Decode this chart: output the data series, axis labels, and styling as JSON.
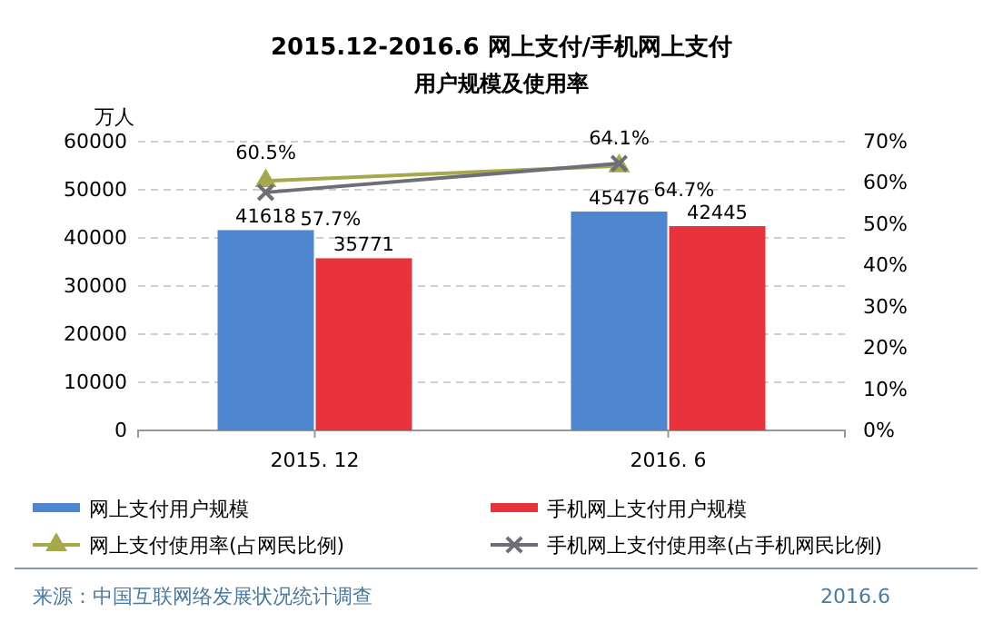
{
  "chart_data": {
    "type": "bar",
    "title": "2015.12-2016.6 网上支付/手机网上支付",
    "subtitle": "用户规模及使用率",
    "ylabel": "万人",
    "categories": [
      "2015. 12",
      "2016. 6"
    ],
    "series": [
      {
        "name": "网上支付用户规模",
        "color": "#4f86d0",
        "values": [
          41618,
          45476
        ],
        "value_labels": [
          "41618",
          "45476"
        ]
      },
      {
        "name": "手机网上支付用户规模",
        "color": "#e8323c",
        "values": [
          35771,
          42445
        ],
        "value_labels": [
          "35771",
          "42445"
        ]
      },
      {
        "name": "网上支付使用率(占网民比例)",
        "type": "line",
        "axis": "y2",
        "color": "#a6a84c",
        "marker": "triangle",
        "values": [
          60.5,
          64.1
        ],
        "value_labels": [
          "60.5%",
          "64.1%"
        ]
      },
      {
        "name": "手机网上支付使用率(占手机网民比例)",
        "type": "line",
        "axis": "y2",
        "color": "#6e6e78",
        "marker": "cross",
        "values": [
          57.7,
          64.7
        ],
        "value_labels": [
          "57.7%",
          "64.7%"
        ]
      }
    ],
    "ylim": [
      0,
      60000
    ],
    "yticks": [
      0,
      10000,
      20000,
      30000,
      40000,
      50000,
      60000
    ],
    "y2lim": [
      0,
      70
    ],
    "y2ticks": [
      {
        "value": 0,
        "label": "0%"
      },
      {
        "value": 10,
        "label": "10%"
      },
      {
        "value": 20,
        "label": "20%"
      },
      {
        "value": 30,
        "label": "30%"
      },
      {
        "value": 40,
        "label": "40%"
      },
      {
        "value": 50,
        "label": "50%"
      },
      {
        "value": 60,
        "label": "60%"
      },
      {
        "value": 70,
        "label": "70%"
      }
    ],
    "grid": "y",
    "legend": "bottom",
    "annotations": [
      "来源：中国互联网络发展状况统计调查",
      "2016.6"
    ]
  }
}
